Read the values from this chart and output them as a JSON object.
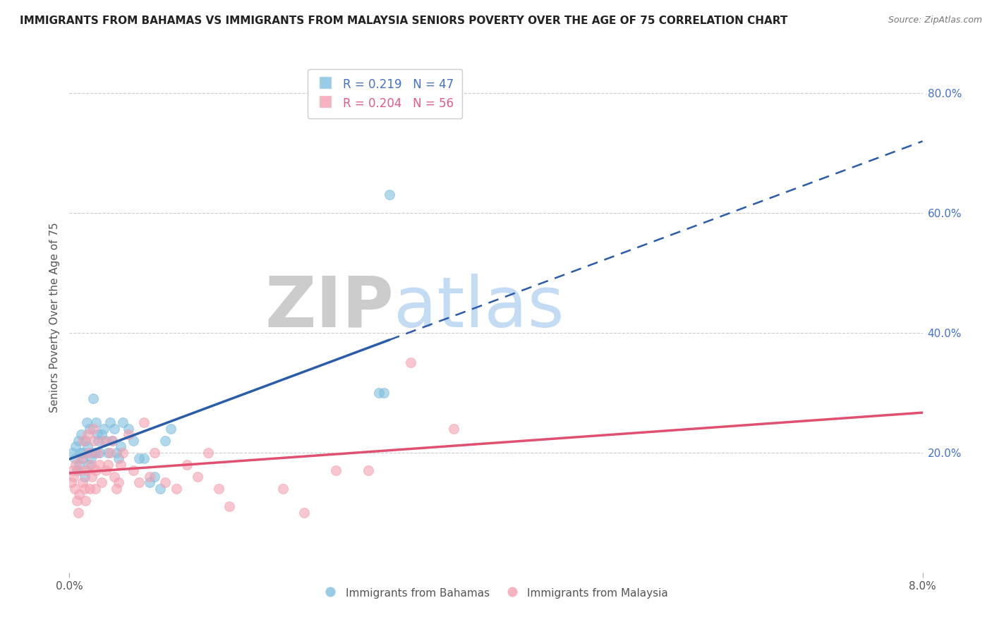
{
  "title": "IMMIGRANTS FROM BAHAMAS VS IMMIGRANTS FROM MALAYSIA SENIORS POVERTY OVER THE AGE OF 75 CORRELATION CHART",
  "source": "Source: ZipAtlas.com",
  "ylabel": "Seniors Poverty Over the Age of 75",
  "xlim": [
    0.0,
    0.08
  ],
  "ylim": [
    0.0,
    0.85
  ],
  "xtick_positions": [
    0.0,
    0.08
  ],
  "xticklabels": [
    "0.0%",
    "8.0%"
  ],
  "yticks_right": [
    0.2,
    0.4,
    0.6,
    0.8
  ],
  "yticklabels_right": [
    "20.0%",
    "40.0%",
    "60.0%",
    "80.0%"
  ],
  "bahamas_color": "#7fbfdf",
  "malaysia_color": "#f4a0b0",
  "bahamas_line_color": "#2a5caa",
  "malaysia_line_color": "#e05070",
  "bahamas_R": 0.219,
  "bahamas_N": 47,
  "malaysia_R": 0.204,
  "malaysia_N": 56,
  "watermark": "ZIPatlas",
  "watermark_color_zip": "#cccccc",
  "watermark_color_atlas": "#aaccee",
  "legend_label_bahamas": "Immigrants from Bahamas",
  "legend_label_malaysia": "Immigrants from Malaysia",
  "title_fontsize": 11,
  "source_fontsize": 9,
  "bahamas_x": [
    0.0003,
    0.0005,
    0.0006,
    0.0007,
    0.0008,
    0.0009,
    0.001,
    0.0011,
    0.0012,
    0.0013,
    0.0014,
    0.0015,
    0.0016,
    0.0017,
    0.0018,
    0.0019,
    0.002,
    0.0021,
    0.0022,
    0.0024,
    0.0025,
    0.0026,
    0.0027,
    0.0028,
    0.003,
    0.0032,
    0.0034,
    0.0036,
    0.0038,
    0.004,
    0.0042,
    0.0044,
    0.0046,
    0.0048,
    0.005,
    0.0055,
    0.006,
    0.0065,
    0.007,
    0.0075,
    0.008,
    0.0085,
    0.009,
    0.0095,
    0.029,
    0.0295,
    0.03
  ],
  "bahamas_y": [
    0.2,
    0.19,
    0.21,
    0.17,
    0.22,
    0.18,
    0.2,
    0.23,
    0.19,
    0.2,
    0.16,
    0.22,
    0.25,
    0.21,
    0.18,
    0.24,
    0.19,
    0.2,
    0.29,
    0.2,
    0.25,
    0.23,
    0.22,
    0.2,
    0.23,
    0.24,
    0.22,
    0.2,
    0.25,
    0.22,
    0.24,
    0.2,
    0.19,
    0.21,
    0.25,
    0.24,
    0.22,
    0.19,
    0.19,
    0.15,
    0.16,
    0.14,
    0.22,
    0.24,
    0.3,
    0.3,
    0.63
  ],
  "malaysia_x": [
    0.0002,
    0.0003,
    0.0004,
    0.0005,
    0.0006,
    0.0007,
    0.0008,
    0.0009,
    0.001,
    0.0011,
    0.0012,
    0.0013,
    0.0014,
    0.0015,
    0.0016,
    0.0017,
    0.0018,
    0.0019,
    0.002,
    0.0021,
    0.0022,
    0.0023,
    0.0024,
    0.0025,
    0.0026,
    0.0028,
    0.003,
    0.0032,
    0.0034,
    0.0036,
    0.0038,
    0.004,
    0.0042,
    0.0044,
    0.0046,
    0.0048,
    0.005,
    0.0055,
    0.006,
    0.0065,
    0.007,
    0.0075,
    0.008,
    0.009,
    0.01,
    0.011,
    0.012,
    0.013,
    0.014,
    0.015,
    0.02,
    0.022,
    0.025,
    0.028,
    0.032,
    0.036
  ],
  "malaysia_y": [
    0.15,
    0.17,
    0.16,
    0.14,
    0.18,
    0.12,
    0.1,
    0.13,
    0.17,
    0.19,
    0.15,
    0.22,
    0.14,
    0.12,
    0.17,
    0.23,
    0.2,
    0.14,
    0.18,
    0.16,
    0.24,
    0.22,
    0.14,
    0.17,
    0.2,
    0.18,
    0.15,
    0.22,
    0.17,
    0.18,
    0.2,
    0.22,
    0.16,
    0.14,
    0.15,
    0.18,
    0.2,
    0.23,
    0.17,
    0.15,
    0.25,
    0.16,
    0.2,
    0.15,
    0.14,
    0.18,
    0.16,
    0.2,
    0.14,
    0.11,
    0.14,
    0.1,
    0.17,
    0.17,
    0.35,
    0.24
  ],
  "grid_color": "#cccccc",
  "bg_color": "#ffffff"
}
